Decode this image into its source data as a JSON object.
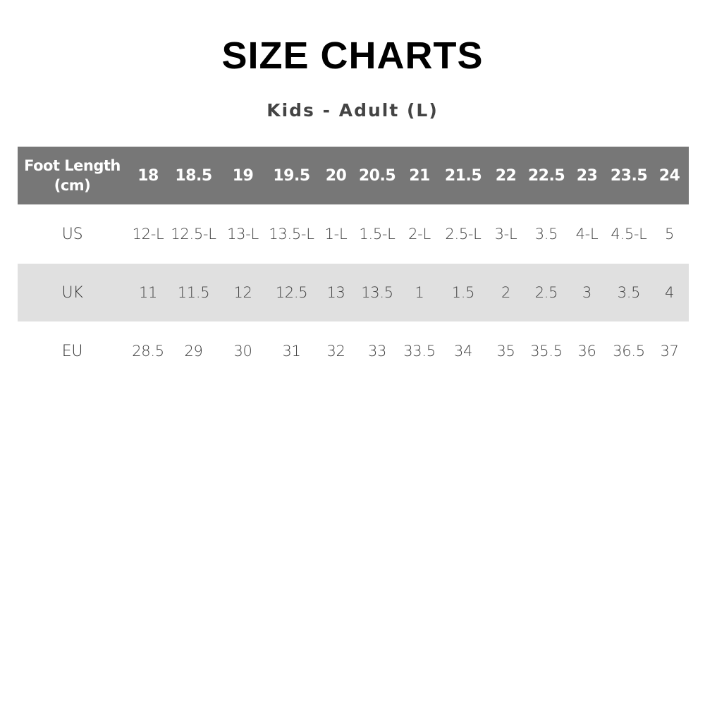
{
  "title": "SIZE CHARTS",
  "subtitle": "Kids - Adult (L)",
  "table": {
    "header_label_line1": "Foot Length",
    "header_label_line2": "(cm)",
    "foot_length": [
      "18",
      "18.5",
      "19",
      "19.5",
      "20",
      "20.5",
      "21",
      "21.5",
      "22",
      "22.5",
      "23",
      "23.5",
      "24"
    ],
    "rows": [
      {
        "label": "US",
        "values": [
          "12-L",
          "12.5-L",
          "13-L",
          "13.5-L",
          "1-L",
          "1.5-L",
          "2-L",
          "2.5-L",
          "3-L",
          "3.5",
          "4-L",
          "4.5-L",
          "5"
        ]
      },
      {
        "label": "UK",
        "values": [
          "11",
          "11.5",
          "12",
          "12.5",
          "13",
          "13.5",
          "1",
          "1.5",
          "2",
          "2.5",
          "3",
          "3.5",
          "4"
        ]
      },
      {
        "label": "EU",
        "values": [
          "28.5",
          "29",
          "30",
          "31",
          "32",
          "33",
          "33.5",
          "34",
          "35",
          "35.5",
          "36",
          "36.5",
          "37"
        ]
      }
    ]
  },
  "colors": {
    "header_bg": "#777777",
    "alt_row_bg": "#e0e0e0"
  }
}
